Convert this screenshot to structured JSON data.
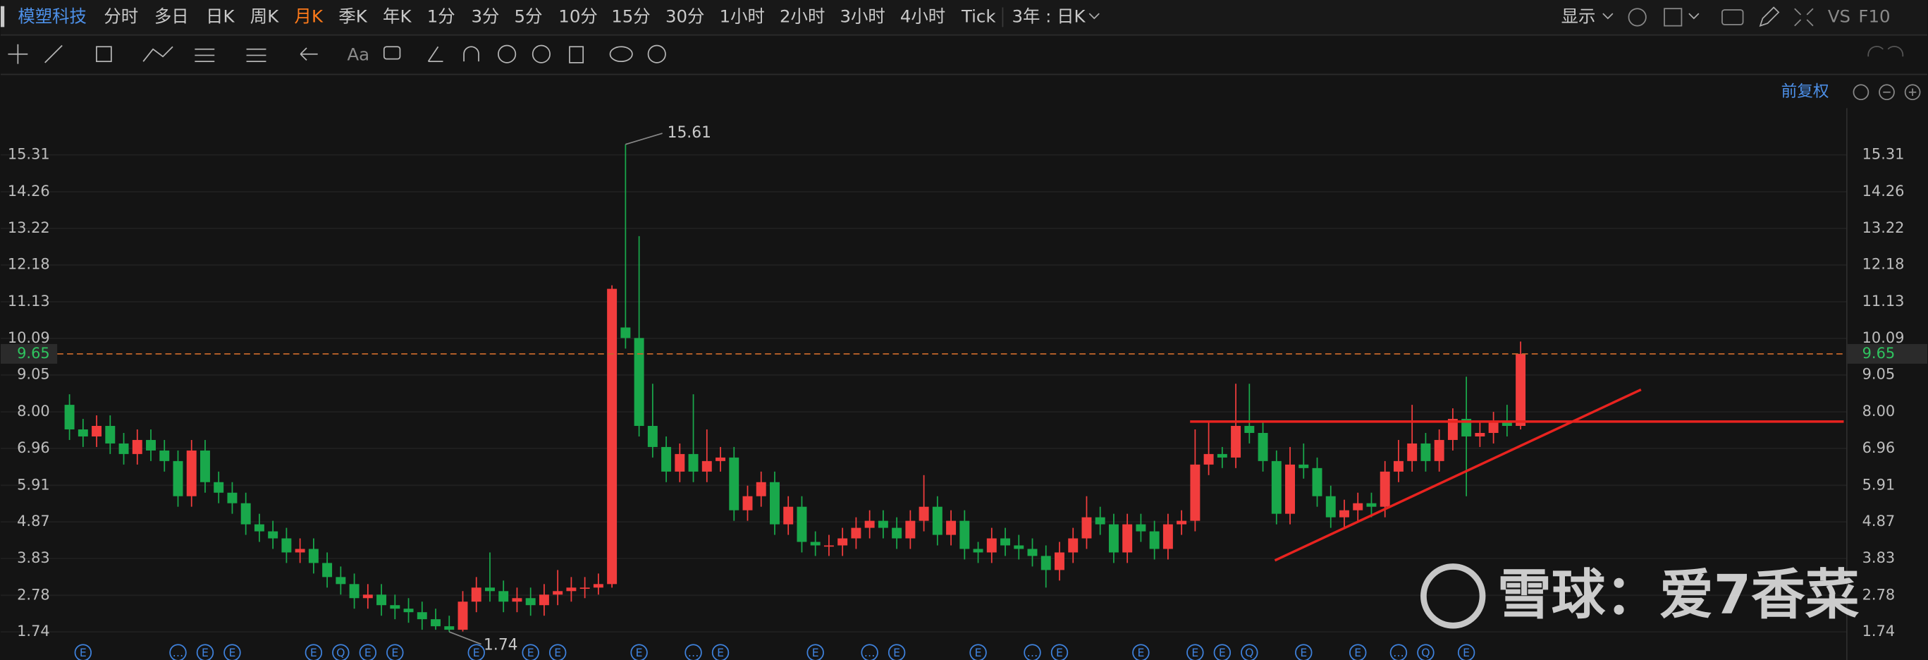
{
  "toolbar": {
    "stock": "模塑科技",
    "periods": [
      "分时",
      "多日",
      "日K",
      "周K",
      "月K",
      "季K",
      "年K",
      "1分",
      "3分",
      "5分",
      "10分",
      "15分",
      "30分",
      "1小时",
      "2小时",
      "3小时",
      "4小时",
      "Tick"
    ],
    "active_period": 4,
    "range": "3年 : 日K",
    "display": "显示",
    "vs": "VS",
    "f10": "F10",
    "font_tool": "Aa"
  },
  "adjust": "前复权",
  "watermark": "雪球：爱7香菜",
  "chart_data": {
    "type": "candlestick",
    "open": [
      8.2,
      7.5,
      7.3,
      7.6,
      7.1,
      6.8,
      7.2,
      6.9,
      6.6,
      5.6,
      6.9,
      6.0,
      5.7,
      5.4,
      4.8,
      4.6,
      4.4,
      4.0,
      4.1,
      3.7,
      3.3,
      3.1,
      2.7,
      2.8,
      2.5,
      2.4,
      2.3,
      2.1,
      1.9,
      1.8,
      2.6,
      3.0,
      2.9,
      2.6,
      2.7,
      2.5,
      2.8,
      2.9,
      3.0,
      3.0,
      3.1,
      10.4,
      10.1,
      7.6,
      7.0,
      6.3,
      6.8,
      6.3,
      6.6,
      6.7,
      5.2,
      5.6,
      6.0,
      4.8,
      5.3,
      4.3,
      4.2,
      4.2,
      4.4,
      4.7,
      4.9,
      4.7,
      4.4,
      4.9,
      5.3,
      4.5,
      4.9,
      4.1,
      4.0,
      4.4,
      4.2,
      4.1,
      3.9,
      3.5,
      4.0,
      4.4,
      5.0,
      4.8,
      4.0,
      4.8,
      4.6,
      4.1,
      4.8,
      4.9,
      6.5,
      6.8,
      6.7,
      7.6,
      7.4,
      6.6,
      5.1,
      6.5,
      6.4,
      5.6,
      5.0,
      5.2,
      5.4,
      5.3,
      6.3,
      6.6,
      7.1,
      6.6,
      7.2,
      7.8,
      7.3,
      7.4,
      7.7,
      7.6
    ],
    "high": [
      8.5,
      7.8,
      7.9,
      7.9,
      7.4,
      7.5,
      7.5,
      7.2,
      6.9,
      7.2,
      7.2,
      6.3,
      6.0,
      5.7,
      5.1,
      4.9,
      4.7,
      4.4,
      4.4,
      4.0,
      3.6,
      3.4,
      3.1,
      3.1,
      2.8,
      2.7,
      2.6,
      2.4,
      2.2,
      2.9,
      3.3,
      4.0,
      3.2,
      3.0,
      3.0,
      3.1,
      3.5,
      3.3,
      3.3,
      3.4,
      11.6,
      15.61,
      13.0,
      8.8,
      7.3,
      7.1,
      8.5,
      7.5,
      7.0,
      7.0,
      5.9,
      6.3,
      6.3,
      5.6,
      5.6,
      4.6,
      4.5,
      4.7,
      5.0,
      5.2,
      5.2,
      5.0,
      5.2,
      6.2,
      5.6,
      5.2,
      5.2,
      4.3,
      4.7,
      4.7,
      4.5,
      4.4,
      4.2,
      4.3,
      4.7,
      5.6,
      5.3,
      5.1,
      5.1,
      5.1,
      4.9,
      5.1,
      5.2,
      7.5,
      7.7,
      7.0,
      8.8,
      8.8,
      7.7,
      6.9,
      7.0,
      7.1,
      6.7,
      5.9,
      5.5,
      5.7,
      5.7,
      6.6,
      7.2,
      8.2,
      7.4,
      7.5,
      8.1,
      9.0,
      7.7,
      8.0,
      8.2,
      10.0
    ],
    "low": [
      7.2,
      7.0,
      7.0,
      6.8,
      6.5,
      6.5,
      6.6,
      6.3,
      5.3,
      5.3,
      5.7,
      5.4,
      5.1,
      4.5,
      4.3,
      4.1,
      3.7,
      3.7,
      3.4,
      3.0,
      2.8,
      2.4,
      2.4,
      2.2,
      2.1,
      2.0,
      1.8,
      1.8,
      1.74,
      1.75,
      2.3,
      2.6,
      2.3,
      2.3,
      2.2,
      2.2,
      2.5,
      2.6,
      2.7,
      2.8,
      3.0,
      9.8,
      7.3,
      6.7,
      6.0,
      6.0,
      6.0,
      6.0,
      6.3,
      4.9,
      4.9,
      5.3,
      4.5,
      4.5,
      4.0,
      3.9,
      3.9,
      3.9,
      4.1,
      4.4,
      4.4,
      4.1,
      4.1,
      4.6,
      4.2,
      4.2,
      3.8,
      3.7,
      3.7,
      3.9,
      3.8,
      3.6,
      3.0,
      3.2,
      3.7,
      4.1,
      4.5,
      3.7,
      3.7,
      4.3,
      3.8,
      3.8,
      4.5,
      4.6,
      6.2,
      6.4,
      6.4,
      7.1,
      6.3,
      4.8,
      4.8,
      6.1,
      5.3,
      4.7,
      4.7,
      4.9,
      5.0,
      5.0,
      6.0,
      6.3,
      6.3,
      6.3,
      6.9,
      5.6,
      7.0,
      7.1,
      7.3,
      7.5
    ],
    "close": [
      7.5,
      7.3,
      7.6,
      7.1,
      6.8,
      7.2,
      6.9,
      6.6,
      5.6,
      6.9,
      6.0,
      5.7,
      5.4,
      4.8,
      4.6,
      4.4,
      4.0,
      4.1,
      3.7,
      3.3,
      3.1,
      2.7,
      2.8,
      2.5,
      2.4,
      2.3,
      2.1,
      1.9,
      1.8,
      2.6,
      3.0,
      2.9,
      2.6,
      2.7,
      2.5,
      2.8,
      2.9,
      3.0,
      3.0,
      3.1,
      11.5,
      10.1,
      7.6,
      7.0,
      6.3,
      6.8,
      6.3,
      6.6,
      6.7,
      5.2,
      5.6,
      6.0,
      4.8,
      5.3,
      4.3,
      4.2,
      4.2,
      4.4,
      4.7,
      4.9,
      4.7,
      4.4,
      4.9,
      5.3,
      4.5,
      4.9,
      4.1,
      4.0,
      4.4,
      4.2,
      4.1,
      3.9,
      3.5,
      4.0,
      4.4,
      5.0,
      4.8,
      4.0,
      4.8,
      4.6,
      4.1,
      4.8,
      4.9,
      6.5,
      6.8,
      6.7,
      7.6,
      7.4,
      6.6,
      5.1,
      6.5,
      6.4,
      5.6,
      5.0,
      5.2,
      5.4,
      5.3,
      6.3,
      6.6,
      7.1,
      6.6,
      7.2,
      7.8,
      7.3,
      7.4,
      7.7,
      7.6,
      9.65
    ],
    "events": [
      null,
      "E",
      null,
      null,
      null,
      null,
      null,
      null,
      "…",
      null,
      "E",
      null,
      "E",
      null,
      null,
      null,
      null,
      null,
      "E",
      null,
      "Q",
      null,
      "E",
      null,
      "E",
      null,
      null,
      null,
      null,
      null,
      "E",
      null,
      null,
      null,
      "E",
      null,
      "E",
      null,
      null,
      null,
      null,
      null,
      "E",
      null,
      null,
      null,
      "…",
      null,
      "E",
      null,
      null,
      null,
      null,
      null,
      null,
      "E",
      null,
      null,
      null,
      "…",
      null,
      "E",
      null,
      null,
      null,
      null,
      null,
      "E",
      null,
      null,
      null,
      "…",
      null,
      "E",
      null,
      null,
      null,
      null,
      null,
      "E",
      null,
      null,
      null,
      "E",
      null,
      "E",
      null,
      "Q",
      null,
      null,
      null,
      "E",
      null,
      null,
      null,
      "E",
      null,
      null,
      "…",
      null,
      "Q",
      null,
      null,
      "E",
      null,
      null,
      null,
      null
    ],
    "ylim": [
      0.94,
      16.64
    ],
    "yticks": [
      1.74,
      2.78,
      3.83,
      4.87,
      5.91,
      6.96,
      {
        "value": 8,
        "label": "8.00"
      },
      9.05,
      10.09,
      11.13,
      12.18,
      13.22,
      14.26,
      15.31
    ],
    "grid": true,
    "up_color": "#f23d3d",
    "down_color": "#19a84b"
  }
}
